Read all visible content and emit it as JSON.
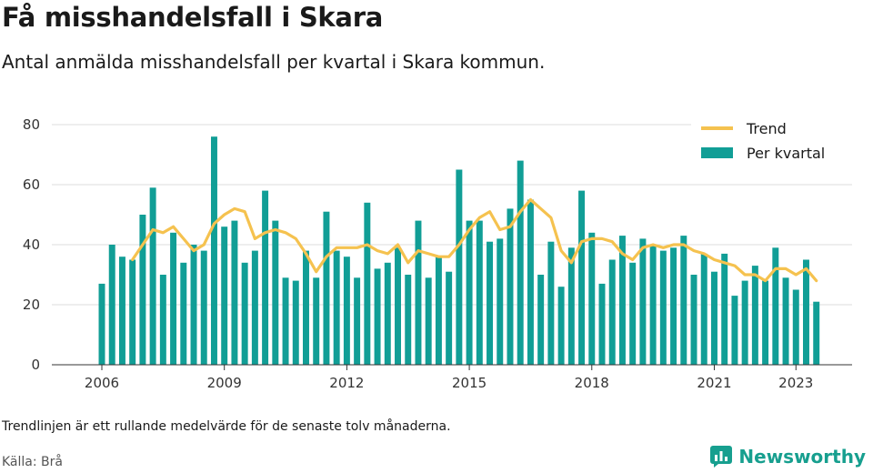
{
  "header": {
    "title": "Få misshandelsfall i Skara",
    "subtitle": "Antal anmälda misshandelsfall per kvartal i Skara kommun."
  },
  "footer": {
    "note": "Trendlinjen är ett rullande medelvärde för de senaste tolv månaderna.",
    "source": "Källa: Brå",
    "brand": "Newsworthy"
  },
  "colors": {
    "bars": "#119e96",
    "trend": "#f5c24f",
    "grid": "#dddddd",
    "brand": "#179f8f"
  },
  "chart_data": {
    "type": "bar",
    "xlabel": "",
    "ylabel": "",
    "ylim": [
      0,
      80
    ],
    "yticks": [
      0,
      20,
      40,
      60,
      80
    ],
    "xticks": [
      "2006",
      "2009",
      "2012",
      "2015",
      "2018",
      "2021",
      "2023"
    ],
    "legend": {
      "placement": "top-right",
      "entries": [
        "Trend",
        "Per kvartal"
      ]
    },
    "grid": true,
    "categories": [
      "2006 Q1",
      "2006 Q2",
      "2006 Q3",
      "2006 Q4",
      "2007 Q1",
      "2007 Q2",
      "2007 Q3",
      "2007 Q4",
      "2008 Q1",
      "2008 Q2",
      "2008 Q3",
      "2008 Q4",
      "2009 Q1",
      "2009 Q2",
      "2009 Q3",
      "2009 Q4",
      "2010 Q1",
      "2010 Q2",
      "2010 Q3",
      "2010 Q4",
      "2011 Q1",
      "2011 Q2",
      "2011 Q3",
      "2011 Q4",
      "2012 Q1",
      "2012 Q2",
      "2012 Q3",
      "2012 Q4",
      "2013 Q1",
      "2013 Q2",
      "2013 Q3",
      "2013 Q4",
      "2014 Q1",
      "2014 Q2",
      "2014 Q3",
      "2014 Q4",
      "2015 Q1",
      "2015 Q2",
      "2015 Q3",
      "2015 Q4",
      "2016 Q1",
      "2016 Q2",
      "2016 Q3",
      "2016 Q4",
      "2017 Q1",
      "2017 Q2",
      "2017 Q3",
      "2017 Q4",
      "2018 Q1",
      "2018 Q2",
      "2018 Q3",
      "2018 Q4",
      "2019 Q1",
      "2019 Q2",
      "2019 Q3",
      "2019 Q4",
      "2020 Q1",
      "2020 Q2",
      "2020 Q3",
      "2020 Q4",
      "2021 Q1",
      "2021 Q2",
      "2021 Q3",
      "2021 Q4",
      "2022 Q1",
      "2022 Q2",
      "2022 Q3",
      "2022 Q4",
      "2023 Q1",
      "2023 Q2",
      "2023 Q3",
      "2023 Q4"
    ],
    "series": [
      {
        "name": "Per kvartal",
        "type": "bar",
        "values": [
          27,
          40,
          36,
          35,
          50,
          59,
          30,
          44,
          34,
          40,
          38,
          76,
          46,
          48,
          34,
          38,
          58,
          48,
          29,
          28,
          38,
          29,
          51,
          38,
          36,
          29,
          54,
          32,
          34,
          39,
          30,
          48,
          29,
          36,
          31,
          65,
          48,
          48,
          41,
          42,
          52,
          68,
          55,
          30,
          41,
          26,
          39,
          58,
          44,
          27,
          35,
          43,
          34,
          42,
          40,
          38,
          39,
          43,
          30,
          37,
          31,
          37,
          23,
          28,
          33,
          28,
          39,
          29,
          25,
          35,
          21,
          null
        ]
      },
      {
        "name": "Trend",
        "type": "line",
        "values": [
          null,
          null,
          null,
          35,
          40,
          45,
          44,
          46,
          42,
          38,
          40,
          47,
          50,
          52,
          51,
          42,
          44,
          45,
          44,
          42,
          37,
          31,
          36,
          39,
          39,
          39,
          40,
          38,
          37,
          40,
          34,
          38,
          37,
          36,
          36,
          40,
          45,
          49,
          51,
          45,
          46,
          51,
          55,
          52,
          49,
          38,
          34,
          41,
          42,
          42,
          41,
          37,
          35,
          39,
          40,
          39,
          40,
          40,
          38,
          37,
          35,
          34,
          33,
          30,
          30,
          28,
          32,
          32,
          30,
          32,
          28,
          null
        ]
      }
    ]
  }
}
